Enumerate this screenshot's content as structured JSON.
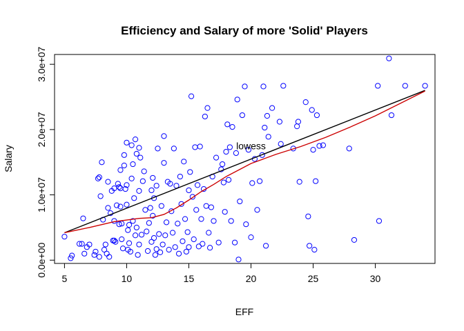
{
  "chart_data": {
    "type": "scatter",
    "title": "Efficiency and Salary of more 'Solid' Players",
    "xlabel": "EFF",
    "ylabel": "Salary",
    "xlim": [
      4.2,
      34.8
    ],
    "ylim": [
      -500000,
      31500000
    ],
    "x_ticks": [
      5,
      10,
      15,
      20,
      25,
      30
    ],
    "x_tick_labels": [
      "5",
      "10",
      "15",
      "20",
      "25",
      "30"
    ],
    "y_ticks": [
      0,
      10000000,
      20000000,
      30000000
    ],
    "y_tick_labels": [
      "0.0e+00",
      "1.0e+07",
      "2.0e+07",
      "3.0e+07"
    ],
    "grid": false,
    "point_color": "#0000ff",
    "linear_fit_color": "#000000",
    "lowess_color": "#cc0000",
    "annotation": {
      "text": "lowess",
      "x": 20.0,
      "y": 17500000
    },
    "points": [
      [
        5.0,
        3600000
      ],
      [
        5.5,
        300000
      ],
      [
        5.6,
        700000
      ],
      [
        6.2,
        2500000
      ],
      [
        6.4,
        2500000
      ],
      [
        6.5,
        6400000
      ],
      [
        6.6,
        1000000
      ],
      [
        6.8,
        2000000
      ],
      [
        7.0,
        2400000
      ],
      [
        7.4,
        800000
      ],
      [
        7.5,
        1300000
      ],
      [
        7.7,
        12500000
      ],
      [
        7.8,
        12700000
      ],
      [
        7.8,
        500000
      ],
      [
        7.9,
        9800000
      ],
      [
        8.0,
        15000000
      ],
      [
        8.1,
        6200000
      ],
      [
        8.2,
        1600000
      ],
      [
        8.3,
        2400000
      ],
      [
        8.4,
        1000000
      ],
      [
        8.5,
        12000000
      ],
      [
        8.5,
        8000000
      ],
      [
        8.6,
        500000
      ],
      [
        8.7,
        7200000
      ],
      [
        8.8,
        10600000
      ],
      [
        8.9,
        3000000
      ],
      [
        9.0,
        11000000
      ],
      [
        9.0,
        6000000
      ],
      [
        9.0,
        3000000
      ],
      [
        9.1,
        2800000
      ],
      [
        9.2,
        8400000
      ],
      [
        9.3,
        11700000
      ],
      [
        9.4,
        11200000
      ],
      [
        9.4,
        5500000
      ],
      [
        9.5,
        13800000
      ],
      [
        9.5,
        11000000
      ],
      [
        9.5,
        8200000
      ],
      [
        9.6,
        5600000
      ],
      [
        9.6,
        3200000
      ],
      [
        9.7,
        1800000
      ],
      [
        9.8,
        16100000
      ],
      [
        9.8,
        14500000
      ],
      [
        9.9,
        10900000
      ],
      [
        10.0,
        18000000
      ],
      [
        10.0,
        11500000
      ],
      [
        10.0,
        8500000
      ],
      [
        10.1,
        4600000
      ],
      [
        10.1,
        1600000
      ],
      [
        10.2,
        5400000
      ],
      [
        10.2,
        2600000
      ],
      [
        10.3,
        1300000
      ],
      [
        10.4,
        17600000
      ],
      [
        10.4,
        12500000
      ],
      [
        10.5,
        14700000
      ],
      [
        10.5,
        6000000
      ],
      [
        10.6,
        9500000
      ],
      [
        10.7,
        18500000
      ],
      [
        10.7,
        3800000
      ],
      [
        10.8,
        16300000
      ],
      [
        10.8,
        5000000
      ],
      [
        10.9,
        800000
      ],
      [
        11.0,
        17200000
      ],
      [
        11.0,
        10600000
      ],
      [
        11.0,
        2400000
      ],
      [
        11.1,
        15700000
      ],
      [
        11.2,
        3900000
      ],
      [
        11.3,
        12100000
      ],
      [
        11.4,
        13600000
      ],
      [
        11.5,
        7700000
      ],
      [
        11.6,
        4400000
      ],
      [
        11.7,
        1400000
      ],
      [
        11.8,
        5700000
      ],
      [
        11.9,
        8000000
      ],
      [
        12.0,
        10700000
      ],
      [
        12.0,
        2800000
      ],
      [
        12.1,
        12600000
      ],
      [
        12.1,
        6800000
      ],
      [
        12.2,
        9500000
      ],
      [
        12.2,
        3400000
      ],
      [
        12.3,
        800000
      ],
      [
        12.4,
        11400000
      ],
      [
        12.4,
        1700000
      ],
      [
        12.5,
        17100000
      ],
      [
        12.6,
        4000000
      ],
      [
        12.7,
        1200000
      ],
      [
        12.8,
        8300000
      ],
      [
        12.9,
        2400000
      ],
      [
        13.0,
        19000000
      ],
      [
        13.0,
        14900000
      ],
      [
        13.1,
        3800000
      ],
      [
        13.2,
        5800000
      ],
      [
        13.3,
        12000000
      ],
      [
        13.4,
        1600000
      ],
      [
        13.5,
        11700000
      ],
      [
        13.6,
        7500000
      ],
      [
        13.7,
        4200000
      ],
      [
        13.8,
        17100000
      ],
      [
        13.9,
        2000000
      ],
      [
        14.0,
        11400000
      ],
      [
        14.1,
        5600000
      ],
      [
        14.2,
        1000000
      ],
      [
        14.3,
        12800000
      ],
      [
        14.4,
        8600000
      ],
      [
        14.5,
        2900000
      ],
      [
        14.6,
        15100000
      ],
      [
        14.7,
        6300000
      ],
      [
        14.8,
        1300000
      ],
      [
        14.9,
        4300000
      ],
      [
        15.0,
        10700000
      ],
      [
        15.0,
        2000000
      ],
      [
        15.1,
        13500000
      ],
      [
        15.2,
        25100000
      ],
      [
        15.3,
        9700000
      ],
      [
        15.4,
        3200000
      ],
      [
        15.5,
        17300000
      ],
      [
        15.6,
        7700000
      ],
      [
        15.7,
        11500000
      ],
      [
        15.8,
        2100000
      ],
      [
        15.9,
        17400000
      ],
      [
        16.0,
        6300000
      ],
      [
        16.1,
        2500000
      ],
      [
        16.2,
        10900000
      ],
      [
        16.3,
        22000000
      ],
      [
        16.4,
        8300000
      ],
      [
        16.5,
        23300000
      ],
      [
        16.6,
        4200000
      ],
      [
        16.7,
        1900000
      ],
      [
        16.8,
        8100000
      ],
      [
        16.9,
        12800000
      ],
      [
        17.0,
        6000000
      ],
      [
        17.2,
        15700000
      ],
      [
        17.4,
        2700000
      ],
      [
        17.6,
        13900000
      ],
      [
        17.7,
        14700000
      ],
      [
        17.8,
        11900000
      ],
      [
        17.9,
        7400000
      ],
      [
        18.0,
        16600000
      ],
      [
        18.1,
        20800000
      ],
      [
        18.2,
        12300000
      ],
      [
        18.3,
        17300000
      ],
      [
        18.4,
        6000000
      ],
      [
        18.5,
        20400000
      ],
      [
        18.7,
        2700000
      ],
      [
        18.8,
        16400000
      ],
      [
        18.9,
        24600000
      ],
      [
        19.0,
        100000
      ],
      [
        19.1,
        9000000
      ],
      [
        19.3,
        22200000
      ],
      [
        19.5,
        26600000
      ],
      [
        19.6,
        5500000
      ],
      [
        19.8,
        16900000
      ],
      [
        20.0,
        3500000
      ],
      [
        20.1,
        11800000
      ],
      [
        20.3,
        15500000
      ],
      [
        20.5,
        7700000
      ],
      [
        20.7,
        12100000
      ],
      [
        20.9,
        16100000
      ],
      [
        21.0,
        26600000
      ],
      [
        21.1,
        20300000
      ],
      [
        21.2,
        2200000
      ],
      [
        21.3,
        22100000
      ],
      [
        21.4,
        18900000
      ],
      [
        21.7,
        23300000
      ],
      [
        22.3,
        21200000
      ],
      [
        22.4,
        17800000
      ],
      [
        22.6,
        26700000
      ],
      [
        23.4,
        17100000
      ],
      [
        23.7,
        20500000
      ],
      [
        23.8,
        21200000
      ],
      [
        23.9,
        12000000
      ],
      [
        24.4,
        24200000
      ],
      [
        24.6,
        6700000
      ],
      [
        24.7,
        2200000
      ],
      [
        24.9,
        23000000
      ],
      [
        25.0,
        16900000
      ],
      [
        25.1,
        1600000
      ],
      [
        25.2,
        12100000
      ],
      [
        25.3,
        22200000
      ],
      [
        25.5,
        17500000
      ],
      [
        25.8,
        17600000
      ],
      [
        27.9,
        17100000
      ],
      [
        28.3,
        3100000
      ],
      [
        30.2,
        26700000
      ],
      [
        30.3,
        6000000
      ],
      [
        31.1,
        30900000
      ],
      [
        31.3,
        22200000
      ],
      [
        32.4,
        26700000
      ],
      [
        34.0,
        26700000
      ]
    ],
    "linear_fit": {
      "x": [
        5.0,
        34.0
      ],
      "y": [
        4200000,
        26000000
      ]
    },
    "lowess": {
      "x": [
        5.0,
        7.0,
        9.0,
        11.0,
        12.0,
        13.0,
        14.0,
        15.0,
        16.0,
        17.0,
        18.0,
        19.0,
        20.0,
        22.0,
        24.0,
        26.0,
        28.0,
        30.0,
        32.0,
        34.0
      ],
      "y": [
        4200000,
        5000000,
        5900000,
        6400000,
        6500000,
        7000000,
        8000000,
        9200000,
        10500000,
        11600000,
        12800000,
        13800000,
        14800000,
        16200000,
        17400000,
        18800000,
        20400000,
        22100000,
        24000000,
        25900000
      ]
    }
  }
}
